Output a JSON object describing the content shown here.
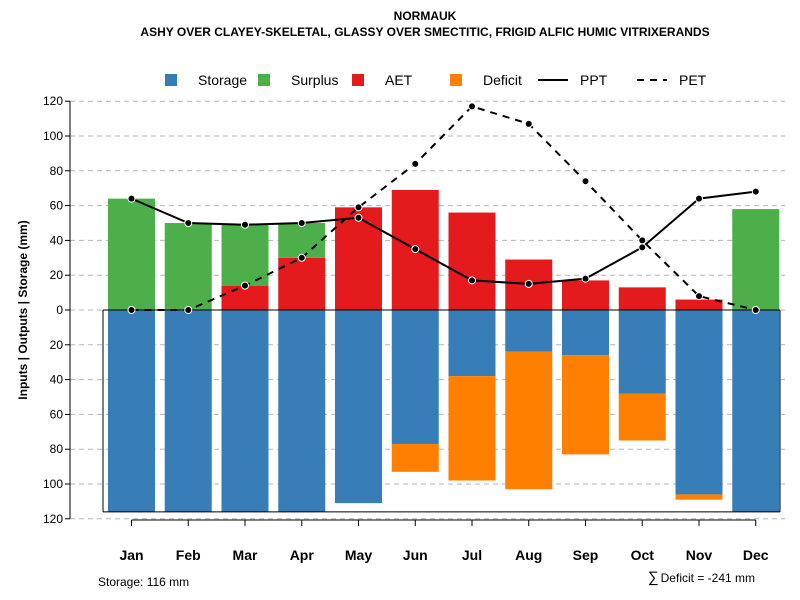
{
  "chart_data": {
    "type": "bar",
    "title": "NORMAUK",
    "subtitle": "ASHY OVER CLAYEY-SKELETAL, GLASSY OVER SMECTITIC, FRIGID ALFIC HUMIC VITRIXERANDS",
    "ylabel": "Inputs | Outputs | Storage    (mm)",
    "ylim": [
      -120,
      120
    ],
    "yticks": [
      120,
      100,
      80,
      60,
      40,
      20,
      0,
      -20,
      -40,
      -60,
      -80,
      -100,
      -120
    ],
    "ytick_labels": [
      "120",
      "100",
      "80",
      "60",
      "40",
      "20",
      "0",
      "20",
      "40",
      "60",
      "80",
      "100",
      "120"
    ],
    "categories": [
      "Jan",
      "Feb",
      "Mar",
      "Apr",
      "May",
      "Jun",
      "Jul",
      "Aug",
      "Sep",
      "Oct",
      "Nov",
      "Dec"
    ],
    "series": [
      {
        "name": "Storage",
        "kind": "bar-below",
        "color": "#377EB8",
        "values": [
          116,
          116,
          116,
          116,
          111,
          77,
          38,
          24,
          26,
          48,
          106,
          116
        ]
      },
      {
        "name": "Deficit",
        "kind": "bar-below-stacked",
        "color": "#FF7F00",
        "values": [
          0,
          0,
          0,
          0,
          0,
          16,
          60,
          79,
          57,
          27,
          3,
          0
        ]
      },
      {
        "name": "AET",
        "kind": "bar-above",
        "color": "#E41A1C",
        "values": [
          0,
          0,
          14,
          30,
          59,
          69,
          56,
          29,
          17,
          13,
          6,
          0
        ]
      },
      {
        "name": "Surplus",
        "kind": "bar-above-stacked",
        "color": "#4DAF4A",
        "values": [
          64,
          50,
          35,
          20,
          0,
          0,
          0,
          0,
          0,
          0,
          0,
          58
        ]
      },
      {
        "name": "PPT",
        "kind": "line-solid",
        "color": "#000000",
        "values": [
          64,
          50,
          49,
          50,
          53,
          35,
          17,
          15,
          18,
          36,
          64,
          68
        ]
      },
      {
        "name": "PET",
        "kind": "line-dashed",
        "color": "#000000",
        "values": [
          0,
          0,
          14,
          30,
          59,
          84,
          117,
          107,
          74,
          40,
          8,
          0
        ]
      }
    ],
    "legend": {
      "placement": "top",
      "entries": [
        {
          "label": "Storage",
          "symbol": "box",
          "color": "#377EB8"
        },
        {
          "label": "Surplus",
          "symbol": "box",
          "color": "#4DAF4A"
        },
        {
          "label": "AET",
          "symbol": "box",
          "color": "#E41A1C"
        },
        {
          "label": "Deficit",
          "symbol": "box",
          "color": "#FF7F00"
        },
        {
          "label": "PPT",
          "symbol": "solid-line",
          "color": "#000000"
        },
        {
          "label": "PET",
          "symbol": "dashed-line",
          "color": "#000000"
        }
      ]
    },
    "grid": true,
    "footer_left": "Storage: 116 mm",
    "footer_right_symbol": "∑",
    "footer_right": "Deficit = -241 mm"
  }
}
